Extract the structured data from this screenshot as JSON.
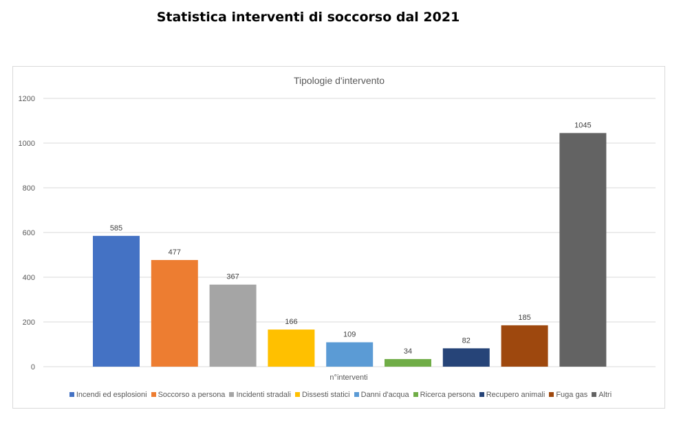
{
  "page_title": "Statistica interventi di soccorso dal 2021",
  "chart_data": {
    "type": "bar",
    "title": "Tipologie d'intervento",
    "xlabel": "n°interventi",
    "ylabel": "",
    "ylim": [
      0,
      1200
    ],
    "yticks": [
      0,
      200,
      400,
      600,
      800,
      1000,
      1200
    ],
    "grid": true,
    "legend_position": "bottom",
    "series": [
      {
        "name": "Incendi ed esplosioni",
        "value": 585,
        "color": "#4472c4"
      },
      {
        "name": "Soccorso a persona",
        "value": 477,
        "color": "#ed7d31"
      },
      {
        "name": "Incidenti stradali",
        "value": 367,
        "color": "#a5a5a5"
      },
      {
        "name": "Dissesti statici",
        "value": 166,
        "color": "#ffc000"
      },
      {
        "name": "Danni d'acqua",
        "value": 109,
        "color": "#5b9bd5"
      },
      {
        "name": "Ricerca persona",
        "value": 34,
        "color": "#70ad47"
      },
      {
        "name": "Recupero animali",
        "value": 82,
        "color": "#264478"
      },
      {
        "name": "Fuga gas",
        "value": 185,
        "color": "#9e480e"
      },
      {
        "name": "Altri",
        "value": 1045,
        "color": "#636363"
      }
    ]
  }
}
